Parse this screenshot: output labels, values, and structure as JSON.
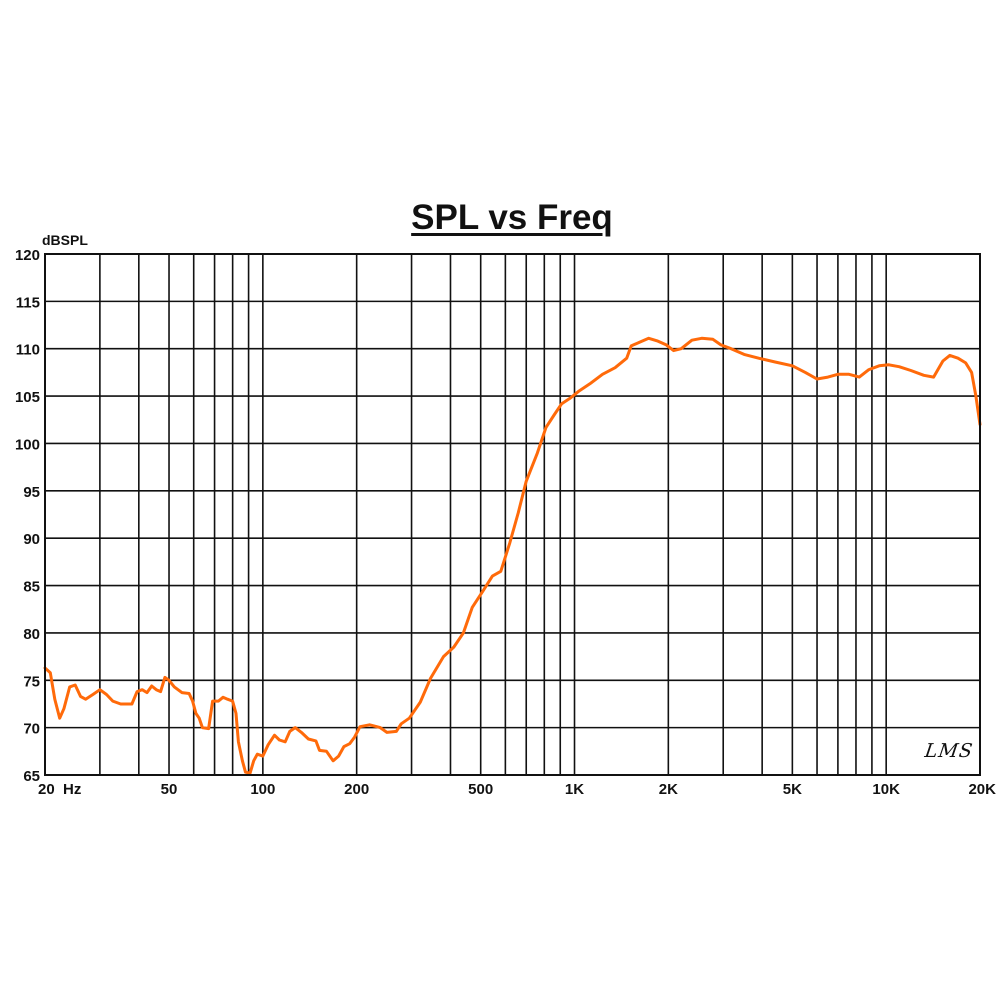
{
  "chart_data": {
    "type": "line",
    "title": "SPL vs Freq",
    "xlabel": "",
    "ylabel": "dBSPL",
    "xscale": "log",
    "xlim": [
      20,
      20000
    ],
    "ylim": [
      65,
      120
    ],
    "grid": true,
    "legend": null,
    "y_ticks": [
      120,
      115,
      110,
      105,
      100,
      95,
      90,
      85,
      80,
      75,
      70,
      65
    ],
    "x_tick_labels": [
      {
        "value": 20,
        "label": "20  Hz"
      },
      {
        "value": 50,
        "label": "50"
      },
      {
        "value": 100,
        "label": "100"
      },
      {
        "value": 200,
        "label": "200"
      },
      {
        "value": 500,
        "label": "500"
      },
      {
        "value": 1000,
        "label": "1K"
      },
      {
        "value": 2000,
        "label": "2K"
      },
      {
        "value": 5000,
        "label": "5K"
      },
      {
        "value": 10000,
        "label": "10K"
      },
      {
        "value": 20000,
        "label": "20K"
      }
    ],
    "x_gridlines": [
      20,
      30,
      40,
      50,
      60,
      70,
      80,
      90,
      100,
      200,
      300,
      400,
      500,
      600,
      700,
      800,
      900,
      1000,
      2000,
      3000,
      4000,
      5000,
      6000,
      7000,
      8000,
      9000,
      10000,
      20000
    ],
    "series": [
      {
        "name": "SPL",
        "color": "#ff6a0a",
        "points": [
          [
            20,
            76.3
          ],
          [
            20.8,
            75.8
          ],
          [
            21.5,
            73.0
          ],
          [
            22.3,
            71.0
          ],
          [
            23.0,
            72.0
          ],
          [
            24.0,
            74.3
          ],
          [
            25.0,
            74.5
          ],
          [
            26.0,
            73.3
          ],
          [
            27.0,
            73.0
          ],
          [
            28.5,
            73.5
          ],
          [
            30.0,
            74.0
          ],
          [
            31.5,
            73.5
          ],
          [
            33.0,
            72.8
          ],
          [
            35.0,
            72.5
          ],
          [
            38.0,
            72.5
          ],
          [
            39.5,
            73.8
          ],
          [
            41.0,
            74.0
          ],
          [
            42.5,
            73.7
          ],
          [
            44.0,
            74.4
          ],
          [
            45.5,
            74.0
          ],
          [
            47.0,
            73.8
          ],
          [
            48.5,
            75.3
          ],
          [
            50.0,
            75.0
          ],
          [
            52.0,
            74.3
          ],
          [
            55.0,
            73.7
          ],
          [
            58.0,
            73.6
          ],
          [
            59.5,
            72.8
          ],
          [
            61.0,
            71.5
          ],
          [
            62.5,
            71.0
          ],
          [
            64.0,
            70.0
          ],
          [
            67.0,
            69.9
          ],
          [
            69.0,
            72.8
          ],
          [
            72.0,
            72.8
          ],
          [
            74.5,
            73.2
          ],
          [
            77.0,
            73.0
          ],
          [
            80.0,
            72.8
          ],
          [
            82.0,
            71.5
          ],
          [
            83.5,
            68.5
          ],
          [
            86.0,
            66.5
          ],
          [
            88.0,
            65.3
          ],
          [
            91.0,
            65.2
          ],
          [
            93.5,
            66.5
          ],
          [
            96.0,
            67.2
          ],
          [
            100.0,
            67.0
          ],
          [
            104.0,
            68.2
          ],
          [
            109.0,
            69.2
          ],
          [
            113.0,
            68.7
          ],
          [
            118.0,
            68.5
          ],
          [
            122.0,
            69.6
          ],
          [
            127.0,
            70.0
          ],
          [
            133.0,
            69.5
          ],
          [
            140.0,
            68.8
          ],
          [
            148.0,
            68.6
          ],
          [
            152.0,
            67.6
          ],
          [
            160.0,
            67.5
          ],
          [
            168.0,
            66.5
          ],
          [
            175.0,
            67.0
          ],
          [
            182.0,
            68.0
          ],
          [
            190.0,
            68.3
          ],
          [
            197.0,
            69.0
          ],
          [
            205.0,
            70.1
          ],
          [
            220.0,
            70.3
          ],
          [
            238.0,
            70.0
          ],
          [
            250.0,
            69.5
          ],
          [
            268.0,
            69.6
          ],
          [
            278.0,
            70.4
          ],
          [
            295.0,
            71.0
          ],
          [
            320.0,
            72.7
          ],
          [
            345.0,
            75.2
          ],
          [
            380.0,
            77.5
          ],
          [
            410.0,
            78.5
          ],
          [
            440.0,
            80.0
          ],
          [
            470.0,
            82.7
          ],
          [
            510.0,
            84.5
          ],
          [
            545.0,
            86.0
          ],
          [
            580.0,
            86.5
          ],
          [
            620.0,
            89.5
          ],
          [
            660.0,
            92.7
          ],
          [
            700.0,
            96.0
          ],
          [
            760.0,
            99.0
          ],
          [
            810.0,
            101.7
          ],
          [
            860.0,
            103.0
          ],
          [
            910.0,
            104.2
          ],
          [
            970.0,
            104.8
          ],
          [
            1030.0,
            105.5
          ],
          [
            1120.0,
            106.3
          ],
          [
            1230.0,
            107.3
          ],
          [
            1350.0,
            108.0
          ],
          [
            1470.0,
            109.0
          ],
          [
            1520.0,
            110.3
          ],
          [
            1620.0,
            110.7
          ],
          [
            1730.0,
            111.1
          ],
          [
            1850.0,
            110.8
          ],
          [
            1970.0,
            110.4
          ],
          [
            2080.0,
            109.8
          ],
          [
            2200.0,
            110.0
          ],
          [
            2380.0,
            110.9
          ],
          [
            2560.0,
            111.1
          ],
          [
            2780.0,
            111.0
          ],
          [
            2950.0,
            110.4
          ],
          [
            3180.0,
            110.0
          ],
          [
            3500.0,
            109.4
          ],
          [
            3900.0,
            109.0
          ],
          [
            4400.0,
            108.6
          ],
          [
            5000.0,
            108.2
          ],
          [
            5500.0,
            107.5
          ],
          [
            6000.0,
            106.8
          ],
          [
            6500.0,
            107.0
          ],
          [
            7000.0,
            107.3
          ],
          [
            7600.0,
            107.3
          ],
          [
            8200.0,
            107.0
          ],
          [
            8800.0,
            107.8
          ],
          [
            9500.0,
            108.2
          ],
          [
            10200.0,
            108.3
          ],
          [
            11000.0,
            108.1
          ],
          [
            12000.0,
            107.7
          ],
          [
            13200.0,
            107.2
          ],
          [
            14200.0,
            107.0
          ],
          [
            15200.0,
            108.7
          ],
          [
            16000.0,
            109.3
          ],
          [
            17000.0,
            109.0
          ],
          [
            18000.0,
            108.5
          ],
          [
            18800.0,
            107.5
          ],
          [
            19400.0,
            105.0
          ],
          [
            20000.0,
            102.0
          ]
        ]
      }
    ],
    "annotations": [
      {
        "text": "LMS",
        "position": "bottom-right inside plot"
      }
    ]
  },
  "labels": {
    "title": "SPL vs Freq",
    "y_unit": "dBSPL",
    "logo": "LMS"
  }
}
